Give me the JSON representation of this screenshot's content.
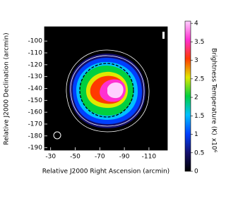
{
  "chart_data": {
    "type": "image",
    "xlabel": "Relative J2000 Right Ascension (arcmin)",
    "ylabel": "Relative J2000 Declination (arcmin)",
    "xlim": [
      -25,
      -125
    ],
    "xticks": [
      -30,
      -50,
      -70,
      -90,
      -110
    ],
    "ylim": [
      -192,
      -88
    ],
    "yticks": [
      -100,
      -110,
      -120,
      -130,
      -140,
      -150,
      -160,
      -170,
      -180,
      -190
    ],
    "colorbar": {
      "label": "Brightness Temperature (K)",
      "multiplier": "x10⁶",
      "lim": [
        0,
        4.06
      ],
      "ticks": [
        0,
        0.5,
        1,
        1.5,
        2,
        2.5,
        3,
        3.5,
        4
      ],
      "colormap": [
        "#000000",
        "#14106e",
        "#0040ff",
        "#00c0ff",
        "#00d040",
        "#e0e800",
        "#ff3a00",
        "#ff30d0",
        "#ffd0ff"
      ]
    }
  }
}
